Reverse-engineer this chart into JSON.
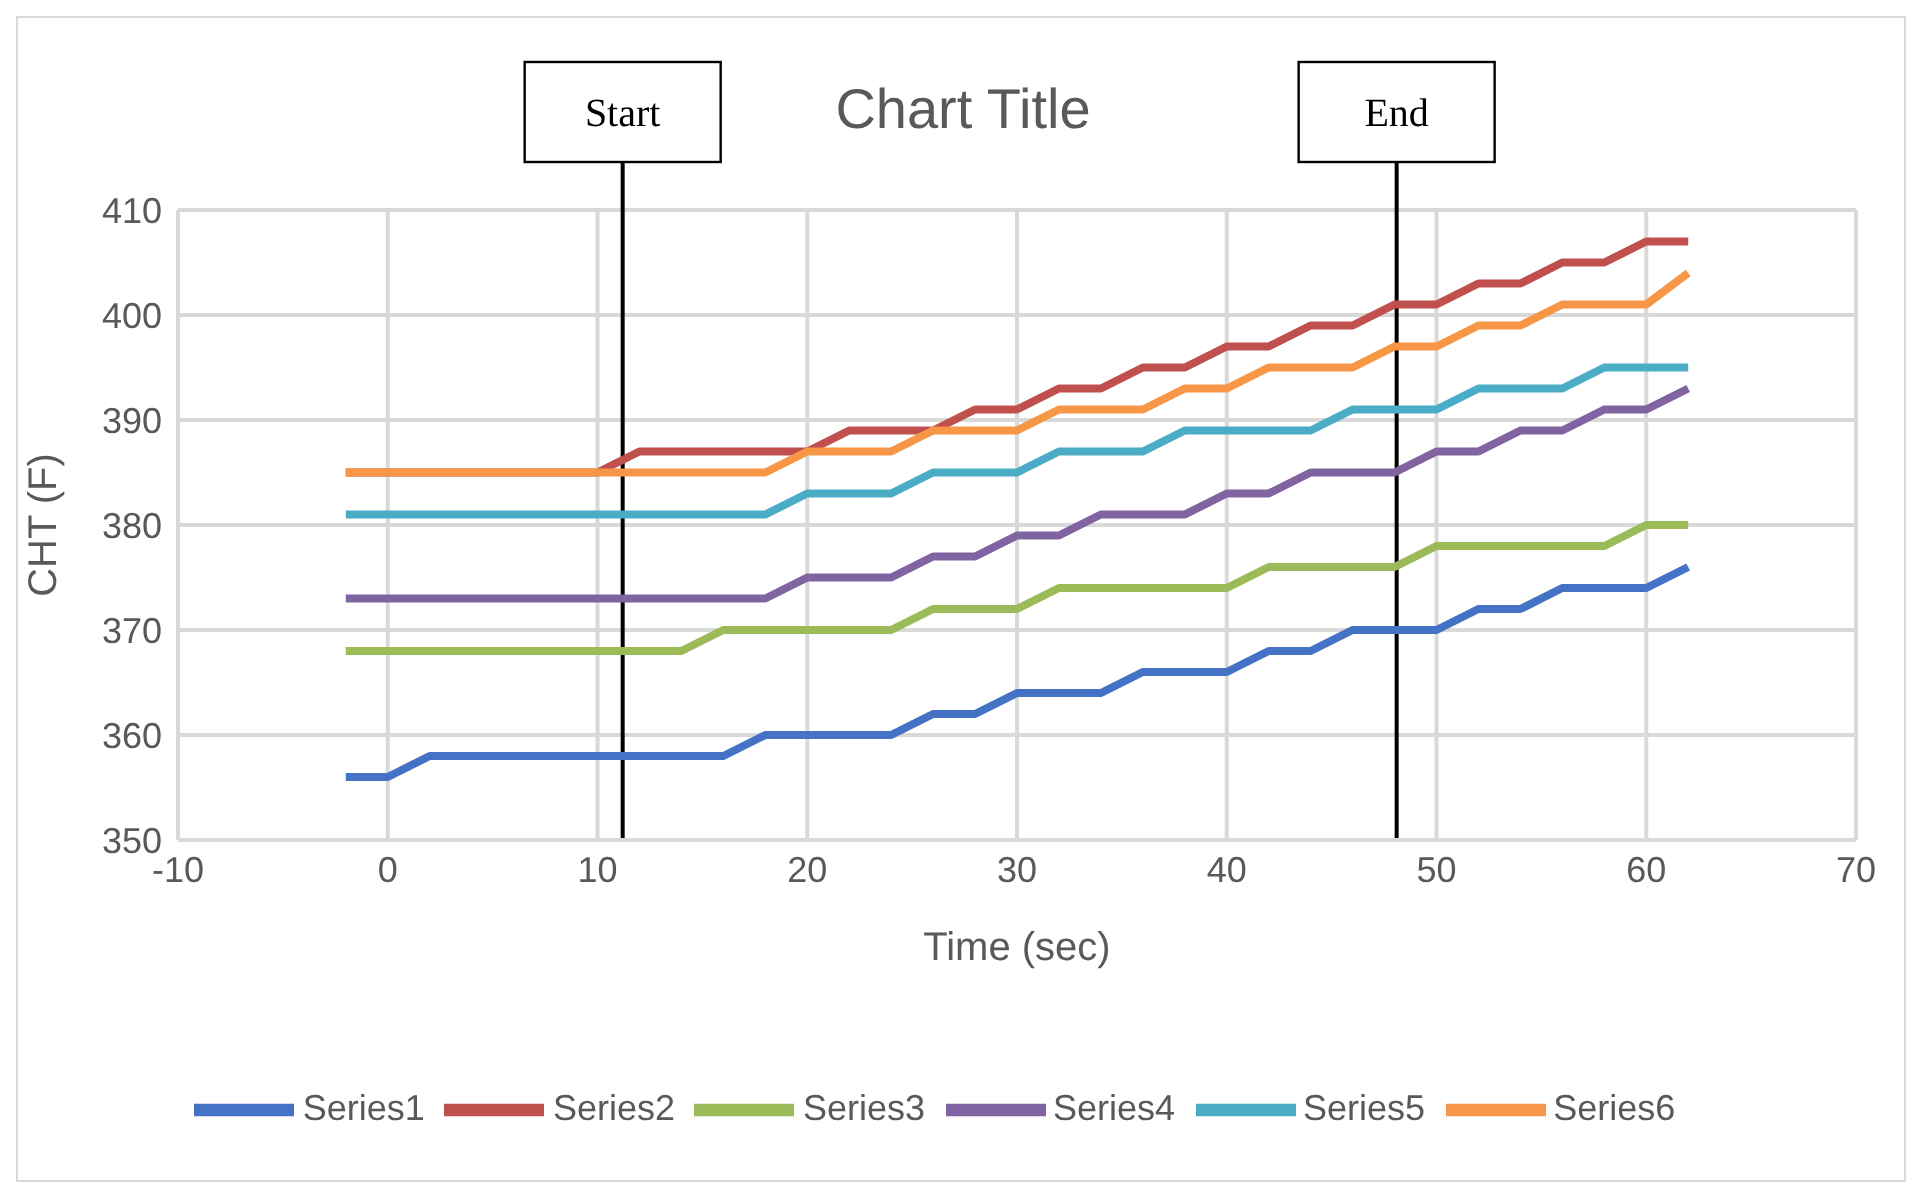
{
  "chart_data": {
    "type": "line",
    "title": "Chart Title",
    "xlabel": "Time (sec)",
    "ylabel": "CHT (F)",
    "x": [
      -2,
      0,
      2,
      4,
      6,
      8,
      10,
      12,
      14,
      16,
      18,
      20,
      22,
      24,
      26,
      28,
      30,
      32,
      34,
      36,
      38,
      40,
      42,
      44,
      46,
      48,
      50,
      52,
      54,
      56,
      58,
      60,
      62
    ],
    "series": [
      {
        "name": "Series1",
        "color": "#4472c4",
        "values": [
          356,
          356,
          358,
          358,
          358,
          358,
          358,
          358,
          358,
          358,
          360,
          360,
          360,
          360,
          362,
          362,
          364,
          364,
          364,
          366,
          366,
          366,
          368,
          368,
          370,
          370,
          370,
          372,
          372,
          374,
          374,
          374,
          376
        ]
      },
      {
        "name": "Series2",
        "color": "#c0504d",
        "values": [
          385,
          385,
          385,
          385,
          385,
          385,
          385,
          387,
          387,
          387,
          387,
          387,
          389,
          389,
          389,
          391,
          391,
          393,
          393,
          395,
          395,
          397,
          397,
          399,
          399,
          401,
          401,
          403,
          403,
          405,
          405,
          407,
          407
        ]
      },
      {
        "name": "Series3",
        "color": "#9bbb59",
        "values": [
          368,
          368,
          368,
          368,
          368,
          368,
          368,
          368,
          368,
          370,
          370,
          370,
          370,
          370,
          372,
          372,
          372,
          374,
          374,
          374,
          374,
          374,
          376,
          376,
          376,
          376,
          378,
          378,
          378,
          378,
          378,
          380,
          380
        ]
      },
      {
        "name": "Series4",
        "color": "#8064a2",
        "values": [
          373,
          373,
          373,
          373,
          373,
          373,
          373,
          373,
          373,
          373,
          373,
          375,
          375,
          375,
          377,
          377,
          379,
          379,
          381,
          381,
          381,
          383,
          383,
          385,
          385,
          385,
          387,
          387,
          389,
          389,
          391,
          391,
          393
        ]
      },
      {
        "name": "Series5",
        "color": "#4bacc6",
        "values": [
          381,
          381,
          381,
          381,
          381,
          381,
          381,
          381,
          381,
          381,
          381,
          383,
          383,
          383,
          385,
          385,
          385,
          387,
          387,
          387,
          389,
          389,
          389,
          389,
          391,
          391,
          391,
          393,
          393,
          393,
          395,
          395,
          395
        ]
      },
      {
        "name": "Series6",
        "color": "#f79646",
        "values": [
          385,
          385,
          385,
          385,
          385,
          385,
          385,
          385,
          385,
          385,
          385,
          387,
          387,
          387,
          389,
          389,
          389,
          391,
          391,
          391,
          393,
          393,
          395,
          395,
          395,
          397,
          397,
          399,
          399,
          401,
          401,
          401,
          404
        ]
      }
    ],
    "xlim": [
      -10,
      70
    ],
    "xticks": [
      -10,
      0,
      10,
      20,
      30,
      40,
      50,
      60,
      70
    ],
    "ylim": [
      350,
      410
    ],
    "yticks": [
      350,
      360,
      370,
      380,
      390,
      400,
      410
    ],
    "ref_lines": [
      {
        "axis": "x",
        "value": 11.2,
        "label": "Start",
        "color": "#000000"
      },
      {
        "axis": "x",
        "value": 48.1,
        "label": "End",
        "color": "#000000"
      }
    ],
    "grid": true,
    "legend": "bottom",
    "marker": "none",
    "line_style": "solid"
  }
}
